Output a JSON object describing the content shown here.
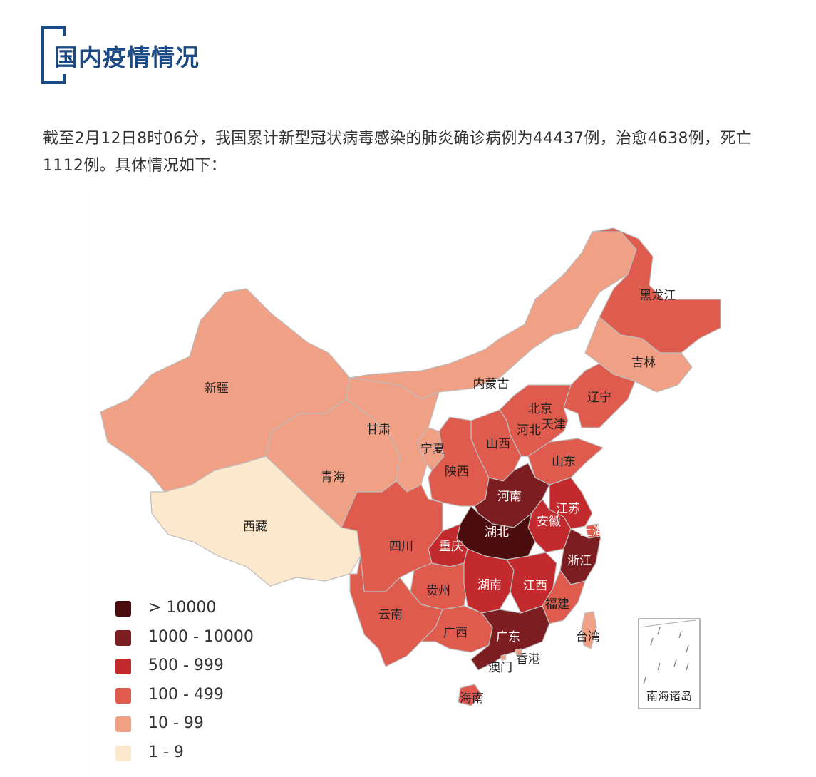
{
  "header": {
    "title": "国内疫情情况"
  },
  "intro": "截至2月12日8时06分，我国累计新型冠状病毒感染的肺炎确诊病例为44437例，治愈4638例，死亡1112例。具体情况如下：",
  "colors": {
    "gt10000": "#4a0c0d",
    "c1000_10000": "#7c1d22",
    "c500_999": "#c22a2e",
    "c100_499": "#de5b4d",
    "c10_99": "#f0a084",
    "c1_9": "#fce8cc",
    "border": "#bdbdbd",
    "accent": "#1c4a84"
  },
  "legend": [
    {
      "label": "> 10000",
      "color": "#4a0c0d"
    },
    {
      "label": "1000 - 10000",
      "color": "#7c1d22"
    },
    {
      "label": "500 - 999",
      "color": "#c22a2e"
    },
    {
      "label": "100 - 499",
      "color": "#de5b4d"
    },
    {
      "label": "10 - 99",
      "color": "#f0a084"
    },
    {
      "label": "1 - 9",
      "color": "#fce8cc"
    }
  ],
  "provinces": [
    {
      "id": "heilongjiang",
      "name": "黑龙江",
      "color": "#de5b4d"
    },
    {
      "id": "jilin",
      "name": "吉林",
      "color": "#f0a084"
    },
    {
      "id": "liaoning",
      "name": "辽宁",
      "color": "#de5b4d"
    },
    {
      "id": "neimenggu",
      "name": "内蒙古",
      "color": "#f0a084"
    },
    {
      "id": "xinjiang",
      "name": "新疆",
      "color": "#f0a084"
    },
    {
      "id": "gansu",
      "name": "甘肃",
      "color": "#f0a084"
    },
    {
      "id": "ningxia",
      "name": "宁夏",
      "color": "#f0a084"
    },
    {
      "id": "qinghai",
      "name": "青海",
      "color": "#f0a084"
    },
    {
      "id": "xizang",
      "name": "西藏",
      "color": "#fce8cc"
    },
    {
      "id": "beijing",
      "name": "北京",
      "color": "#de5b4d"
    },
    {
      "id": "tianjin",
      "name": "天津",
      "color": "#de5b4d"
    },
    {
      "id": "hebei",
      "name": "河北",
      "color": "#de5b4d"
    },
    {
      "id": "shanxi",
      "name": "山西",
      "color": "#de5b4d"
    },
    {
      "id": "shaanxi",
      "name": "陕西",
      "color": "#de5b4d"
    },
    {
      "id": "shandong",
      "name": "山东",
      "color": "#de5b4d"
    },
    {
      "id": "henan",
      "name": "河南",
      "color": "#7c1d22"
    },
    {
      "id": "jiangsu",
      "name": "江苏",
      "color": "#c22a2e"
    },
    {
      "id": "anhui",
      "name": "安徽",
      "color": "#c22a2e"
    },
    {
      "id": "shanghai",
      "name": "上海",
      "color": "#de5b4d"
    },
    {
      "id": "hubei",
      "name": "湖北",
      "color": "#4a0c0d"
    },
    {
      "id": "sichuan",
      "name": "四川",
      "color": "#de5b4d"
    },
    {
      "id": "chongqing",
      "name": "重庆",
      "color": "#c22a2e"
    },
    {
      "id": "zhejiang",
      "name": "浙江",
      "color": "#7c1d22"
    },
    {
      "id": "guizhou",
      "name": "贵州",
      "color": "#de5b4d"
    },
    {
      "id": "hunan",
      "name": "湖南",
      "color": "#c22a2e"
    },
    {
      "id": "jiangxi",
      "name": "江西",
      "color": "#c22a2e"
    },
    {
      "id": "fujian",
      "name": "福建",
      "color": "#de5b4d"
    },
    {
      "id": "yunnan",
      "name": "云南",
      "color": "#de5b4d"
    },
    {
      "id": "guangxi",
      "name": "广西",
      "color": "#de5b4d"
    },
    {
      "id": "guangdong",
      "name": "广东",
      "color": "#7c1d22"
    },
    {
      "id": "xianggang",
      "name": "香港",
      "color": "#f0a084"
    },
    {
      "id": "aomen",
      "name": "澳门",
      "color": "#f0a084"
    },
    {
      "id": "taiwan",
      "name": "台湾",
      "color": "#f0a084"
    },
    {
      "id": "hainan",
      "name": "海南",
      "color": "#de5b4d"
    }
  ],
  "inset_label": "南海诸岛"
}
